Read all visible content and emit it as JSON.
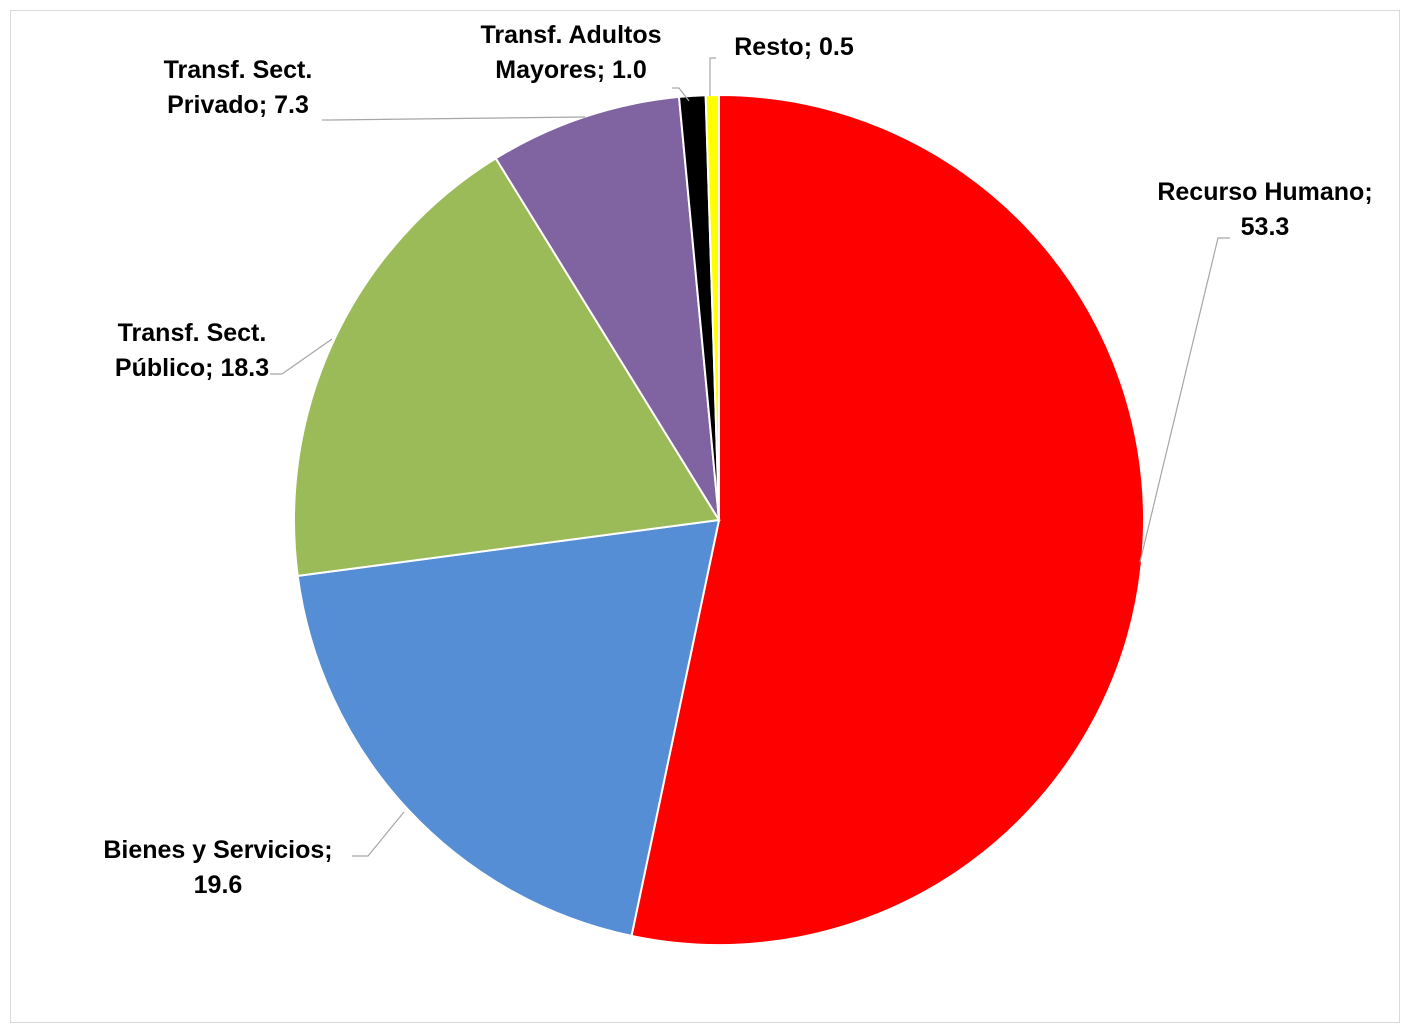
{
  "chart_data": {
    "type": "pie",
    "start_angle_deg": 0,
    "direction": "clockwise",
    "slices": [
      {
        "label": "Recurso Humano",
        "value": 53.3,
        "color": "#ff0000",
        "label_lines": [
          "Recurso Humano;",
          "53.3"
        ]
      },
      {
        "label": "Bienes y Servicios",
        "value": 19.6,
        "color": "#558ed5",
        "label_lines": [
          "Bienes y Servicios;",
          "19.6"
        ]
      },
      {
        "label": "Transf. Sect. Público",
        "value": 18.3,
        "color": "#9bbb59",
        "label_lines": [
          "Transf. Sect.",
          "Público;  18.3"
        ]
      },
      {
        "label": "Transf. Sect. Privado",
        "value": 7.3,
        "color": "#8064a2",
        "label_lines": [
          "Transf. Sect.",
          "Privado;  7.3"
        ]
      },
      {
        "label": "Transf. Adultos Mayores",
        "value": 1.0,
        "color": "#000000",
        "label_lines": [
          "Transf. Adultos",
          "Mayores;  1.0"
        ]
      },
      {
        "label": "Resto",
        "value": 0.5,
        "color": "#ffff00",
        "label_lines": [
          "Resto;  0.5"
        ]
      }
    ]
  }
}
